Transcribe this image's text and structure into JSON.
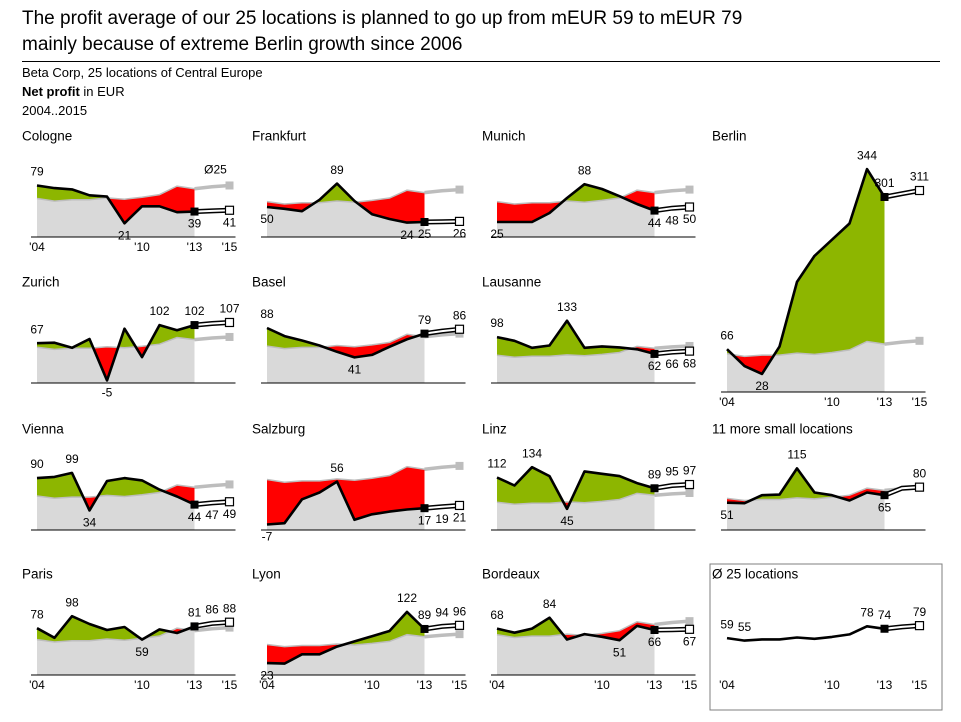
{
  "header": {
    "title": [
      "The profit average of our 25 locations is planned to go up from mEUR 59 to mEUR 79",
      "mainly because of extreme Berlin growth since 2006"
    ],
    "subtitle": "Beta Corp, 25 locations of Central Europe",
    "measure": "Net profit",
    "unit": "in EUR",
    "period": "2004..2015"
  },
  "colors": {
    "line": "#000000",
    "above": "#8db600",
    "below": "#ff0000",
    "reference_fill": "#d9d9d9",
    "reference_line": "#bdbdbd"
  },
  "chart_data": [
    {
      "type": "comparison",
      "title": "Cologne",
      "x": [
        2004,
        2005,
        2006,
        2007,
        2008,
        2009,
        2010,
        2011,
        2012,
        2013,
        2014,
        2015
      ],
      "forecast_from": 2013,
      "ylim": [
        0,
        115
      ],
      "values": [
        79,
        75,
        73,
        64,
        62,
        21,
        47,
        47,
        38,
        39,
        40,
        41
      ],
      "value_labels": [
        "79",
        null,
        null,
        null,
        null,
        "21",
        null,
        null,
        null,
        "39",
        null,
        "41"
      ],
      "xticks": [
        {
          "value": 2004,
          "label": "'04"
        },
        {
          "value": 2010,
          "label": "'10"
        },
        {
          "value": 2013,
          "label": "'13"
        },
        {
          "value": 2015,
          "label": "'15"
        }
      ],
      "reference_label": "Ø25"
    },
    {
      "type": "comparison",
      "title": "Frankfurt",
      "x": [
        2004,
        2005,
        2006,
        2007,
        2008,
        2009,
        2010,
        2011,
        2012,
        2013,
        2014,
        2015
      ],
      "forecast_from": 2013,
      "ylim": [
        0,
        125
      ],
      "values": [
        50,
        47,
        43,
        62,
        89,
        60,
        38,
        30,
        24,
        25,
        25.5,
        26
      ],
      "value_labels": [
        "50",
        null,
        null,
        null,
        "89",
        null,
        null,
        null,
        "24",
        "25",
        null,
        "26"
      ]
    },
    {
      "type": "comparison",
      "title": "Munich",
      "x": [
        2004,
        2005,
        2006,
        2007,
        2008,
        2009,
        2010,
        2011,
        2012,
        2013,
        2014,
        2015
      ],
      "forecast_from": 2013,
      "ylim": [
        0,
        125
      ],
      "values": [
        25,
        25,
        25,
        40,
        65,
        88,
        80,
        68,
        55,
        44,
        48,
        50
      ],
      "value_labels": [
        "25",
        null,
        null,
        null,
        null,
        "88",
        null,
        null,
        null,
        "44",
        "48",
        "50"
      ]
    },
    {
      "type": "comparison",
      "title": "Berlin",
      "x": [
        2004,
        2005,
        2006,
        2007,
        2008,
        2009,
        2010,
        2011,
        2012,
        2013,
        2014,
        2015
      ],
      "forecast_from": 2013,
      "ylim": [
        0,
        355
      ],
      "values": [
        66,
        40,
        28,
        70,
        170,
        210,
        235,
        260,
        344,
        301,
        306,
        311
      ],
      "value_labels": [
        "66",
        null,
        "28",
        null,
        null,
        null,
        null,
        null,
        "344",
        "301",
        null,
        "311"
      ],
      "xticks": [
        {
          "value": 2004,
          "label": "'04"
        },
        {
          "value": 2010,
          "label": "'10"
        },
        {
          "value": 2013,
          "label": "'13"
        },
        {
          "value": 2015,
          "label": "'15"
        }
      ]
    },
    {
      "type": "comparison",
      "title": "Zurich",
      "x": [
        2004,
        2005,
        2006,
        2007,
        2008,
        2009,
        2010,
        2011,
        2012,
        2013,
        2014,
        2015
      ],
      "forecast_from": 2013,
      "ylim": [
        -10,
        135
      ],
      "values": [
        67,
        68,
        58,
        75,
        -5,
        95,
        40,
        102,
        92,
        102,
        105,
        107
      ],
      "value_labels": [
        "67",
        null,
        null,
        null,
        "-5",
        null,
        null,
        "102",
        null,
        "102",
        null,
        "107"
      ]
    },
    {
      "type": "comparison",
      "title": "Basel",
      "x": [
        2004,
        2005,
        2006,
        2007,
        2008,
        2009,
        2010,
        2011,
        2012,
        2013,
        2014,
        2015
      ],
      "forecast_from": 2013,
      "ylim": [
        0,
        120
      ],
      "values": [
        88,
        75,
        68,
        60,
        50,
        41,
        45,
        58,
        70,
        79,
        83,
        86
      ],
      "value_labels": [
        "88",
        null,
        null,
        null,
        null,
        "41",
        null,
        null,
        null,
        "79",
        null,
        "86"
      ]
    },
    {
      "type": "comparison",
      "title": "Lausanne",
      "x": [
        2004,
        2005,
        2006,
        2007,
        2008,
        2009,
        2010,
        2011,
        2012,
        2013,
        2014,
        2015
      ],
      "forecast_from": 2013,
      "ylim": [
        0,
        160
      ],
      "values": [
        98,
        90,
        75,
        80,
        133,
        75,
        78,
        76,
        72,
        62,
        66,
        68
      ],
      "value_labels": [
        "98",
        null,
        null,
        null,
        "133",
        null,
        null,
        null,
        null,
        "62",
        "66",
        "68"
      ]
    },
    {
      "type": "comparison",
      "title": "Vienna",
      "x": [
        2004,
        2005,
        2006,
        2007,
        2008,
        2009,
        2010,
        2011,
        2012,
        2013,
        2014,
        2015
      ],
      "forecast_from": 2013,
      "ylim": [
        0,
        130
      ],
      "values": [
        90,
        92,
        99,
        34,
        85,
        90,
        86,
        70,
        58,
        44,
        47,
        49
      ],
      "value_labels": [
        "90",
        null,
        "99",
        "34",
        null,
        null,
        null,
        null,
        null,
        "44",
        "47",
        "49"
      ]
    },
    {
      "type": "comparison",
      "title": "Salzburg",
      "x": [
        2004,
        2005,
        2006,
        2007,
        2008,
        2009,
        2010,
        2011,
        2012,
        2013,
        2014,
        2015
      ],
      "forecast_from": 2013,
      "ylim": [
        -15,
        95
      ],
      "values": [
        -7,
        -5,
        30,
        40,
        56,
        0,
        8,
        12,
        15,
        17,
        19,
        21
      ],
      "value_labels": [
        "-7",
        null,
        null,
        null,
        "56",
        null,
        null,
        null,
        null,
        "17",
        "19",
        "21"
      ]
    },
    {
      "type": "comparison",
      "title": "Linz",
      "x": [
        2004,
        2005,
        2006,
        2007,
        2008,
        2009,
        2010,
        2011,
        2012,
        2013,
        2014,
        2015
      ],
      "forecast_from": 2013,
      "ylim": [
        0,
        160
      ],
      "values": [
        112,
        95,
        134,
        115,
        45,
        125,
        120,
        115,
        100,
        89,
        95,
        97
      ],
      "value_labels": [
        "112",
        null,
        "134",
        null,
        "45",
        null,
        null,
        null,
        null,
        "89",
        "95",
        "97"
      ]
    },
    {
      "type": "comparison",
      "title": "11 more small locations",
      "x": [
        2004,
        2005,
        2006,
        2007,
        2008,
        2009,
        2010,
        2011,
        2012,
        2013,
        2014,
        2015
      ],
      "forecast_from": 2013,
      "ylim": [
        0,
        140
      ],
      "values": [
        51,
        50,
        65,
        66,
        115,
        70,
        65,
        55,
        70,
        65,
        78,
        80
      ],
      "value_labels": [
        "51",
        null,
        null,
        null,
        "115",
        null,
        null,
        null,
        null,
        "65",
        null,
        "80"
      ]
    },
    {
      "type": "comparison",
      "title": "Paris",
      "x": [
        2004,
        2005,
        2006,
        2007,
        2008,
        2009,
        2010,
        2011,
        2012,
        2013,
        2014,
        2015
      ],
      "forecast_from": 2013,
      "ylim": [
        0,
        125
      ],
      "values": [
        78,
        62,
        98,
        85,
        75,
        80,
        59,
        76,
        70,
        81,
        86,
        88
      ],
      "value_labels": [
        "78",
        null,
        "98",
        null,
        null,
        null,
        "59",
        null,
        null,
        "81",
        "86",
        "88"
      ],
      "xticks": [
        {
          "value": 2004,
          "label": "'04"
        },
        {
          "value": 2010,
          "label": "'10"
        },
        {
          "value": 2013,
          "label": "'13"
        },
        {
          "value": 2015,
          "label": "'15"
        }
      ]
    },
    {
      "type": "comparison",
      "title": "Lyon",
      "x": [
        2004,
        2005,
        2006,
        2007,
        2008,
        2009,
        2010,
        2011,
        2012,
        2013,
        2014,
        2015
      ],
      "forecast_from": 2013,
      "ylim": [
        0,
        145
      ],
      "values": [
        23,
        22,
        40,
        40,
        55,
        65,
        75,
        85,
        122,
        89,
        94,
        96
      ],
      "value_labels": [
        "23",
        null,
        null,
        null,
        null,
        null,
        null,
        null,
        "122",
        "89",
        "94",
        "96"
      ],
      "xticks": [
        {
          "value": 2004,
          "label": "'04"
        },
        {
          "value": 2010,
          "label": "'10"
        },
        {
          "value": 2013,
          "label": "'13"
        },
        {
          "value": 2015,
          "label": "'15"
        }
      ]
    },
    {
      "type": "comparison",
      "title": "Bordeaux",
      "x": [
        2004,
        2005,
        2006,
        2007,
        2008,
        2009,
        2010,
        2011,
        2012,
        2013,
        2014,
        2015
      ],
      "forecast_from": 2013,
      "ylim": [
        0,
        110
      ],
      "values": [
        68,
        62,
        68,
        84,
        52,
        60,
        56,
        51,
        72,
        66,
        66.5,
        67
      ],
      "value_labels": [
        "68",
        null,
        null,
        "84",
        null,
        null,
        null,
        "51",
        null,
        "66",
        null,
        "67"
      ],
      "xticks": [
        {
          "value": 2004,
          "label": "'04"
        },
        {
          "value": 2010,
          "label": "'10"
        },
        {
          "value": 2013,
          "label": "'13"
        },
        {
          "value": 2015,
          "label": "'15"
        }
      ]
    },
    {
      "type": "line",
      "title": "Ø 25 locations",
      "x": [
        2004,
        2005,
        2006,
        2007,
        2008,
        2009,
        2010,
        2011,
        2012,
        2013,
        2014,
        2015
      ],
      "forecast_from": 2013,
      "ylim": [
        0,
        120
      ],
      "values": [
        59,
        55,
        57,
        57,
        60,
        58,
        61,
        65,
        78,
        74,
        77,
        79
      ],
      "value_labels": [
        "59",
        "55",
        null,
        null,
        null,
        null,
        null,
        null,
        "78",
        "74",
        null,
        "79"
      ],
      "xticks": [
        {
          "value": 2004,
          "label": "'04"
        },
        {
          "value": 2010,
          "label": "'10"
        },
        {
          "value": 2013,
          "label": "'13"
        },
        {
          "value": 2015,
          "label": "'15"
        }
      ]
    }
  ]
}
